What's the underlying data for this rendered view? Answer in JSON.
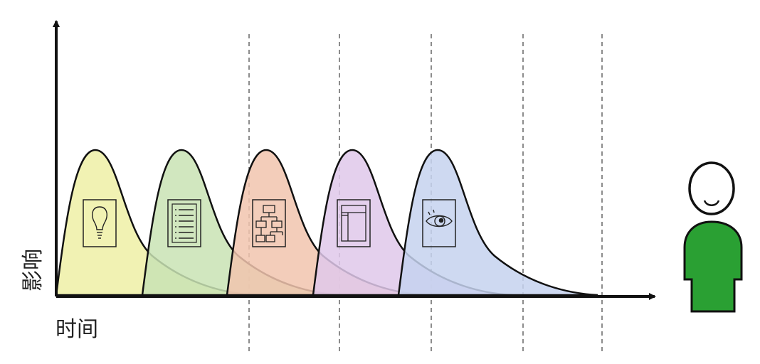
{
  "axes": {
    "x_label": "时间",
    "y_label": "影响"
  },
  "phases": [
    {
      "icon": "lightbulb-icon",
      "color": "#eef0a6"
    },
    {
      "icon": "list-document-icon",
      "color": "#c9e3b4"
    },
    {
      "icon": "hierarchy-icon",
      "color": "#f1c4ae"
    },
    {
      "icon": "layout-icon",
      "color": "#dfc8ea"
    },
    {
      "icon": "eye-icon",
      "color": "#c5d2ee"
    }
  ],
  "colors": {
    "axis": "#111111",
    "dashed_line": "#666666",
    "person_body": "#2aa033",
    "person_outline": "#111111"
  }
}
